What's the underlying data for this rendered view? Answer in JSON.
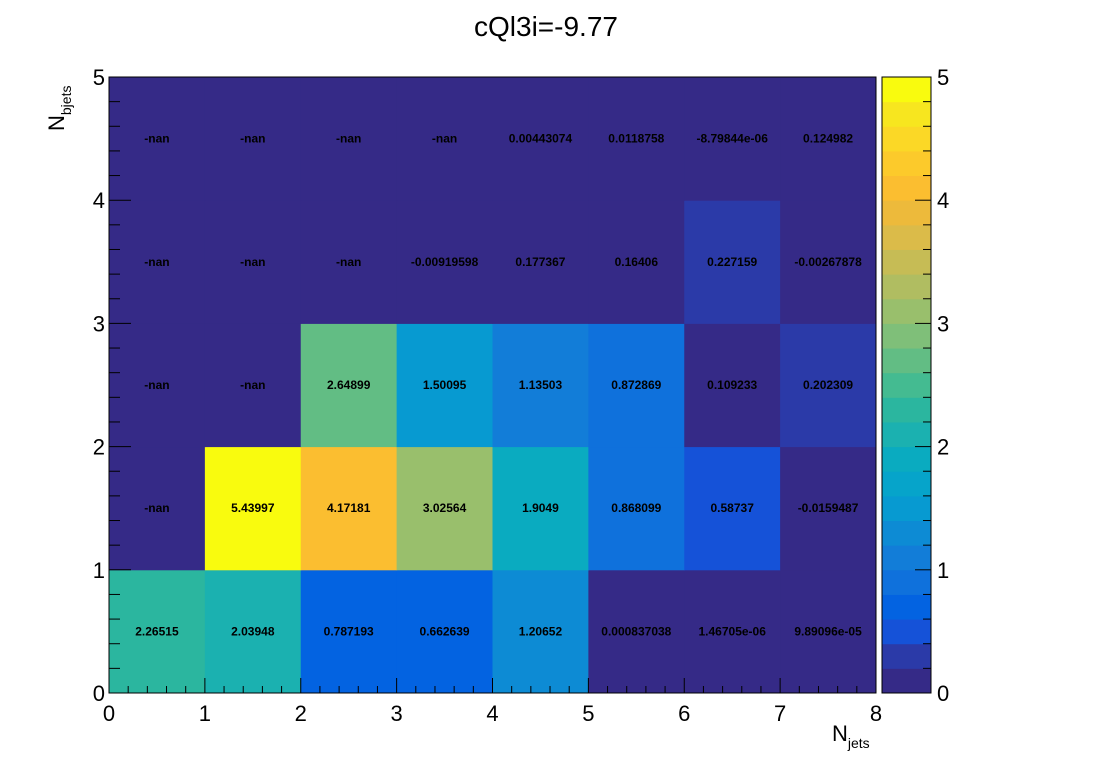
{
  "chart_data": {
    "type": "heatmap",
    "title": "cQl3i=-9.77",
    "xlabel_main": "N",
    "xlabel_sub": "jets",
    "ylabel_main": "N",
    "ylabel_sub": "bjets",
    "xlim": [
      0,
      8
    ],
    "ylim": [
      0,
      5
    ],
    "zlim": [
      0,
      5
    ],
    "x_ticks": [
      "0",
      "1",
      "2",
      "3",
      "4",
      "5",
      "6",
      "7",
      "8"
    ],
    "y_ticks": [
      "0",
      "1",
      "2",
      "3",
      "4",
      "5"
    ],
    "z_ticks": [
      "0",
      "1",
      "2",
      "3",
      "4",
      "5"
    ],
    "grid": false,
    "colorbar": "right",
    "rows": [
      {
        "y_bin": [
          0,
          1
        ],
        "values": [
          2.26515,
          2.03948,
          0.787193,
          0.662639,
          1.20652,
          0.000837038,
          1.46705e-06,
          9.89096e-05
        ],
        "labels": [
          "2.26515",
          "2.03948",
          "0.787193",
          "0.662639",
          "1.20652",
          "0.000837038",
          "1.46705e-06",
          "9.89096e-05"
        ]
      },
      {
        "y_bin": [
          1,
          2
        ],
        "values": [
          null,
          5.43997,
          4.17181,
          3.02564,
          1.9049,
          0.868099,
          0.58737,
          -0.0159487
        ],
        "labels": [
          "-nan",
          "5.43997",
          "4.17181",
          "3.02564",
          "1.9049",
          "0.868099",
          "0.58737",
          "-0.0159487"
        ]
      },
      {
        "y_bin": [
          2,
          3
        ],
        "values": [
          null,
          null,
          2.64899,
          1.50095,
          1.13503,
          0.872869,
          0.109233,
          0.202309
        ],
        "labels": [
          "-nan",
          "-nan",
          "2.64899",
          "1.50095",
          "1.13503",
          "0.872869",
          "0.109233",
          "0.202309"
        ]
      },
      {
        "y_bin": [
          3,
          4
        ],
        "values": [
          null,
          null,
          null,
          -0.00919598,
          0.177367,
          0.16406,
          0.227159,
          -0.00267878
        ],
        "labels": [
          "-nan",
          "-nan",
          "-nan",
          "-0.00919598",
          "0.177367",
          "0.16406",
          "0.227159",
          "-0.00267878"
        ]
      },
      {
        "y_bin": [
          4,
          5
        ],
        "values": [
          null,
          null,
          null,
          null,
          0.00443074,
          0.0118758,
          -8.79844e-06,
          0.124982
        ],
        "labels": [
          "-nan",
          "-nan",
          "-nan",
          "-nan",
          "0.00443074",
          "0.0118758",
          "-8.79844e-06",
          "0.124982"
        ]
      }
    ],
    "palette": [
      "#352a87",
      "#2b3aa8",
      "#1552d8",
      "#0363e1",
      "#0f71dc",
      "#127dd8",
      "#0d8bd4",
      "#079ad1",
      "#06a4ca",
      "#0aabc0",
      "#1bb1b0",
      "#2bb69f",
      "#44bb91",
      "#62bd84",
      "#7fbf79",
      "#99bf6c",
      "#b0bd61",
      "#c6bc55",
      "#dbbb49",
      "#edba3b",
      "#fbbe30",
      "#fcca2b",
      "#fbd826",
      "#f7e61f",
      "#f9fb0e"
    ],
    "nan_color": "#352a87"
  }
}
